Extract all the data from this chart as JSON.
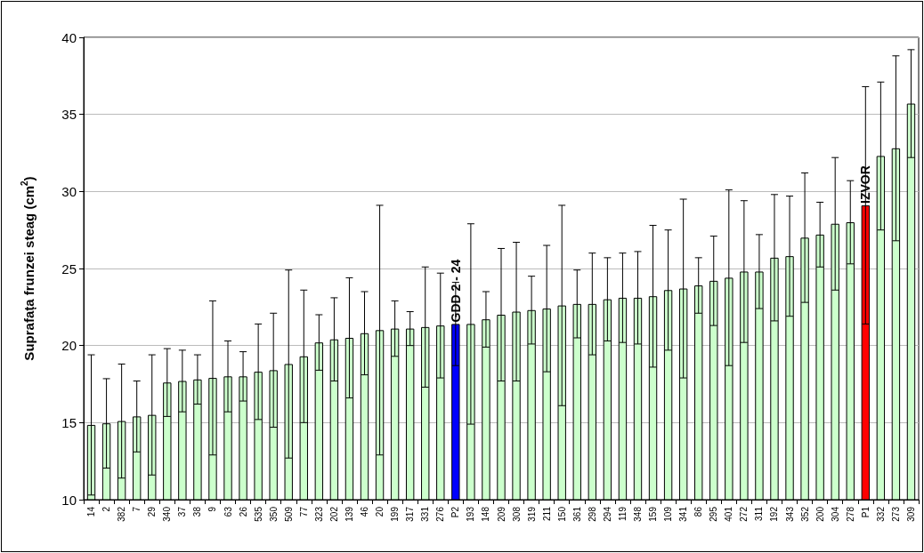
{
  "chart_data": {
    "type": "bar",
    "ylabel": "Suprafața frunzei steag (cm$^{2}$)",
    "categories": [
      "14",
      "2",
      "382",
      "7",
      "29",
      "340",
      "37",
      "38",
      "9",
      "63",
      "26",
      "535",
      "350",
      "509",
      "77",
      "323",
      "202",
      "139",
      "46",
      "20",
      "199",
      "317",
      "331",
      "276",
      "P2",
      "193",
      "148",
      "209",
      "308",
      "319",
      "211",
      "150",
      "361",
      "298",
      "294",
      "119",
      "348",
      "159",
      "109",
      "341",
      "86",
      "295",
      "401",
      "272",
      "311",
      "192",
      "343",
      "352",
      "200",
      "304",
      "278",
      "P1",
      "332",
      "273",
      "309"
    ],
    "values": [
      14.85,
      14.95,
      15.1,
      15.4,
      15.5,
      17.6,
      17.7,
      17.8,
      17.9,
      18.0,
      18.0,
      18.3,
      18.4,
      18.8,
      19.3,
      20.2,
      20.4,
      20.5,
      20.8,
      21.0,
      21.1,
      21.1,
      21.2,
      21.3,
      21.4,
      21.4,
      21.7,
      22.0,
      22.2,
      22.3,
      22.4,
      22.6,
      22.7,
      22.7,
      23.0,
      23.1,
      23.1,
      23.2,
      23.6,
      23.7,
      23.9,
      24.2,
      24.4,
      24.8,
      24.8,
      25.7,
      25.8,
      27.0,
      27.2,
      27.9,
      28.0,
      29.1,
      32.3,
      32.8,
      35.7
    ],
    "errors": [
      4.55,
      2.9,
      3.7,
      2.3,
      3.9,
      2.2,
      2.0,
      1.6,
      5.0,
      2.3,
      1.6,
      3.1,
      3.7,
      6.1,
      4.3,
      1.8,
      2.7,
      3.9,
      2.7,
      8.1,
      1.8,
      1.1,
      3.9,
      3.4,
      2.7,
      6.5,
      1.8,
      4.3,
      4.5,
      2.2,
      4.1,
      6.5,
      2.2,
      3.3,
      2.7,
      2.9,
      3.0,
      4.6,
      3.9,
      5.8,
      1.8,
      2.9,
      5.7,
      4.6,
      2.4,
      4.1,
      3.9,
      4.2,
      2.1,
      4.3,
      2.7,
      7.7,
      4.8,
      6.0,
      3.5
    ],
    "colors": [
      "#ccffcc",
      "#ccffcc",
      "#ccffcc",
      "#ccffcc",
      "#ccffcc",
      "#ccffcc",
      "#ccffcc",
      "#ccffcc",
      "#ccffcc",
      "#ccffcc",
      "#ccffcc",
      "#ccffcc",
      "#ccffcc",
      "#ccffcc",
      "#ccffcc",
      "#ccffcc",
      "#ccffcc",
      "#ccffcc",
      "#ccffcc",
      "#ccffcc",
      "#ccffcc",
      "#ccffcc",
      "#ccffcc",
      "#ccffcc",
      "#0000ff",
      "#ccffcc",
      "#ccffcc",
      "#ccffcc",
      "#ccffcc",
      "#ccffcc",
      "#ccffcc",
      "#ccffcc",
      "#ccffcc",
      "#ccffcc",
      "#ccffcc",
      "#ccffcc",
      "#ccffcc",
      "#ccffcc",
      "#ccffcc",
      "#ccffcc",
      "#ccffcc",
      "#ccffcc",
      "#ccffcc",
      "#ccffcc",
      "#ccffcc",
      "#ccffcc",
      "#ccffcc",
      "#ccffcc",
      "#ccffcc",
      "#ccffcc",
      "#ccffcc",
      "#ff0000",
      "#ccffcc",
      "#ccffcc",
      "#ccffcc"
    ],
    "ylim": [
      10,
      40
    ],
    "yticks": [
      10,
      15,
      20,
      25,
      30,
      35,
      40
    ],
    "grid": "y",
    "annotations": [
      {
        "text": "GDD 2 - 24",
        "x": "P2",
        "y": 21.4
      },
      {
        "text": "IZVOR",
        "x": "P1",
        "y": 29.1
      }
    ]
  }
}
